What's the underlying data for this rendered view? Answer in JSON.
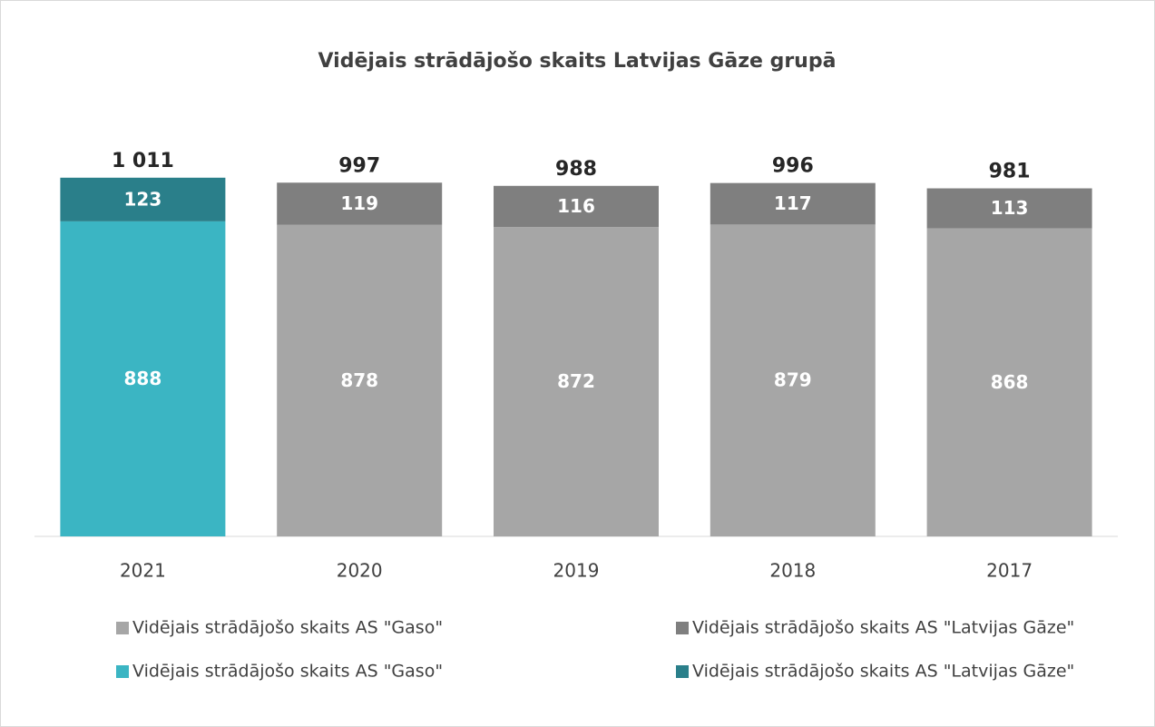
{
  "chart_data": {
    "type": "stacked_bar",
    "title": "Vidējais strādājošo skaits Latvijas Gāze grupā",
    "categories": [
      "2021",
      "2020",
      "2019",
      "2018",
      "2017"
    ],
    "series": [
      {
        "name": "Vidējais strādājošo skaits AS \"Gaso\"",
        "color": "#a6a6a6",
        "values": [
          null,
          878,
          872,
          879,
          868
        ]
      },
      {
        "name": "Vidējais strādājošo skaits AS \"Latvijas Gāze\"",
        "color": "#7f7f7f",
        "values": [
          null,
          119,
          116,
          117,
          113
        ]
      },
      {
        "name": "Vidējais strādājošo skaits AS \"Gaso\"",
        "color": "#3bb5c3",
        "values": [
          888,
          null,
          null,
          null,
          null
        ]
      },
      {
        "name": "Vidējais strādājošo skaits AS \"Latvijas Gāze\"",
        "color": "#2a7f8a",
        "values": [
          123,
          null,
          null,
          null,
          null
        ]
      }
    ],
    "totals": {
      "values": [
        1011,
        997,
        988,
        996,
        981
      ],
      "value_labels": [
        "1 011",
        "997",
        "988",
        "996",
        "981"
      ]
    },
    "ylim": [
      0,
      1100
    ]
  }
}
